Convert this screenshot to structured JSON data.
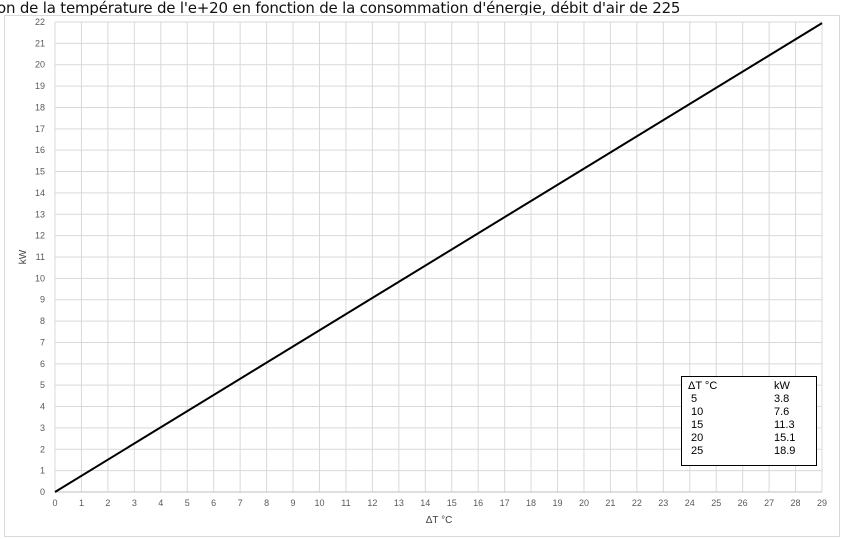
{
  "title": "on de la température de l'e+20 en fonction de la consommation d'énergie, débit d'air de 225",
  "chart_data": {
    "type": "line",
    "xlabel": "ΔT °C",
    "ylabel": "kW",
    "xlim": [
      0,
      29
    ],
    "ylim": [
      0,
      22
    ],
    "grid": true,
    "x_ticks": [
      "0",
      "1",
      "2",
      "3",
      "4",
      "5",
      "6",
      "7",
      "8",
      "9",
      "10",
      "11",
      "12",
      "13",
      "14",
      "15",
      "16",
      "17",
      "18",
      "19",
      "20",
      "21",
      "22",
      "23",
      "24",
      "25",
      "26",
      "27",
      "28",
      "29"
    ],
    "y_ticks": [
      "0",
      "1",
      "2",
      "3",
      "4",
      "5",
      "6",
      "7",
      "8",
      "9",
      "10",
      "11",
      "12",
      "13",
      "14",
      "15",
      "16",
      "17",
      "18",
      "19",
      "20",
      "21",
      "22"
    ],
    "series": [
      {
        "x": [
          0,
          29
        ],
        "values": [
          0,
          21.95
        ],
        "color": "#000000"
      }
    ],
    "table": {
      "headers": [
        "ΔT °C",
        "kW"
      ],
      "rows": [
        [
          "5",
          "3.8"
        ],
        [
          "10",
          "7.6"
        ],
        [
          "15",
          "11.3"
        ],
        [
          "20",
          "15.1"
        ],
        [
          "25",
          "18.9"
        ]
      ]
    }
  }
}
